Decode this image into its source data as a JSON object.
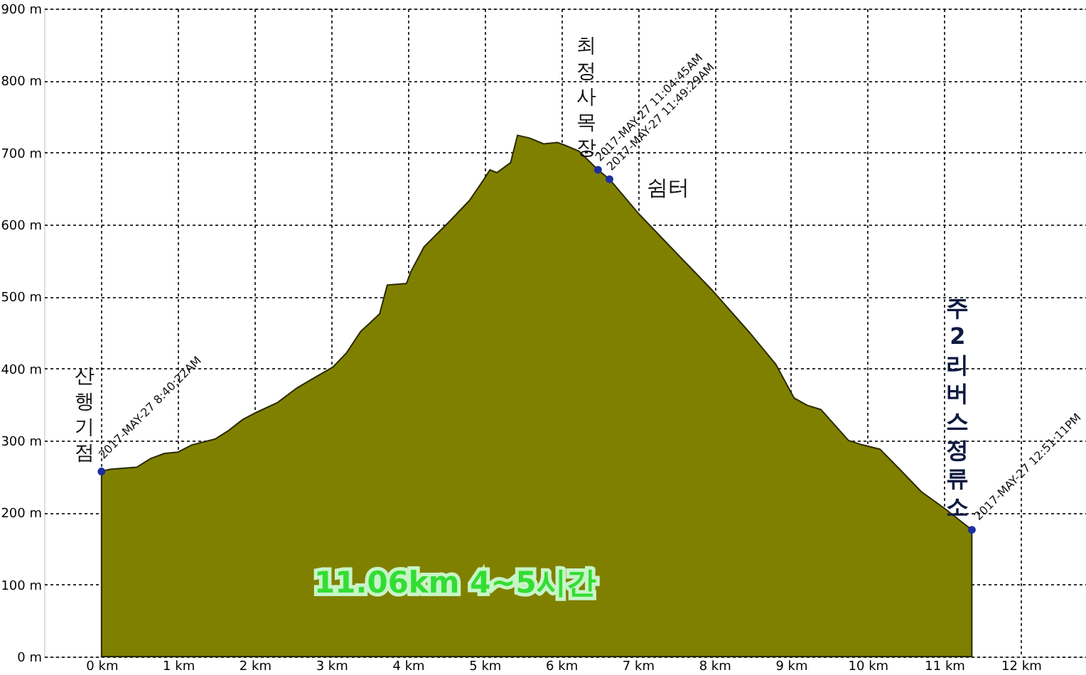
{
  "chart_data": {
    "type": "area",
    "xlim": [
      -0.75,
      12.85
    ],
    "ylim": [
      0,
      900
    ],
    "xticks": [
      {
        "value": 0,
        "label": "0 km"
      },
      {
        "value": 1,
        "label": "1 km"
      },
      {
        "value": 2,
        "label": "2 km"
      },
      {
        "value": 3,
        "label": "3 km"
      },
      {
        "value": 4,
        "label": "4 km"
      },
      {
        "value": 5,
        "label": "5 km"
      },
      {
        "value": 6,
        "label": "6 km"
      },
      {
        "value": 7,
        "label": "7 km"
      },
      {
        "value": 8,
        "label": "8 km"
      },
      {
        "value": 9,
        "label": "9 km"
      },
      {
        "value": 10,
        "label": "10 km"
      },
      {
        "value": 11,
        "label": "11 km"
      },
      {
        "value": 12,
        "label": "12 km"
      }
    ],
    "yticks": [
      {
        "value": 0,
        "label": "0 m"
      },
      {
        "value": 100,
        "label": "100 m"
      },
      {
        "value": 200,
        "label": "200 m"
      },
      {
        "value": 300,
        "label": "300 m"
      },
      {
        "value": 400,
        "label": "400 m"
      },
      {
        "value": 500,
        "label": "500 m"
      },
      {
        "value": 600,
        "label": "600 m"
      },
      {
        "value": 700,
        "label": "700 m"
      },
      {
        "value": 800,
        "label": "800 m"
      },
      {
        "value": 900,
        "label": "900 m"
      }
    ],
    "grid": true,
    "series": [
      {
        "color": "#808000",
        "x": [
          0,
          0.11,
          0.46,
          0.64,
          0.82,
          1.0,
          1.18,
          1.48,
          1.66,
          1.84,
          2.02,
          2.3,
          2.55,
          2.79,
          3.02,
          3.2,
          3.38,
          3.63,
          3.73,
          3.98,
          4.04,
          4.21,
          4.52,
          4.8,
          4.98,
          5.07,
          5.16,
          5.34,
          5.43,
          5.59,
          5.77,
          5.95,
          6.05,
          6.23,
          6.48,
          6.63,
          7.02,
          7.48,
          7.96,
          8.45,
          8.8,
          9.04,
          9.21,
          9.39,
          9.75,
          9.93,
          10.16,
          10.41,
          10.7,
          11.0,
          11.36
        ],
        "values": [
          257,
          260,
          263,
          275,
          282,
          284,
          294,
          302,
          314,
          329,
          339,
          353,
          373,
          388,
          402,
          422,
          451,
          476,
          516,
          518,
          535,
          569,
          602,
          633,
          661,
          676,
          672,
          686,
          724,
          720,
          712,
          714,
          710,
          702,
          676,
          663,
          614,
          563,
          510,
          451,
          406,
          359,
          349,
          343,
          300,
          294,
          288,
          261,
          229,
          206,
          176
        ]
      },
      {
        "type": "scatter",
        "color": "#1c2fa0",
        "marker": "circle",
        "x": [
          0,
          6.48,
          6.63,
          11.36
        ],
        "values": [
          257,
          676,
          663,
          176
        ]
      }
    ],
    "annotations": [
      {
        "text": "2017-MAY-27 8:40:22AM",
        "x": 0,
        "y": 257
      },
      {
        "text": "2017-MAY-27 11:04:45AM",
        "x": 6.48,
        "y": 676
      },
      {
        "text": "2017-MAY-27 11:49:29AM",
        "x": 6.63,
        "y": 663
      },
      {
        "text": "2017-MAY-27 12:51:11PM",
        "x": 11.36,
        "y": 176
      },
      {
        "text": "산행기점",
        "x": 0,
        "y": 257
      },
      {
        "text": "최정사목장",
        "x": 6.48,
        "y": 676
      },
      {
        "text": "쉼터",
        "x": 6.63,
        "y": 663
      },
      {
        "text": "주2리버스정류소",
        "x": 11.36,
        "y": 176
      },
      "11.06km 4~5시간"
    ]
  }
}
